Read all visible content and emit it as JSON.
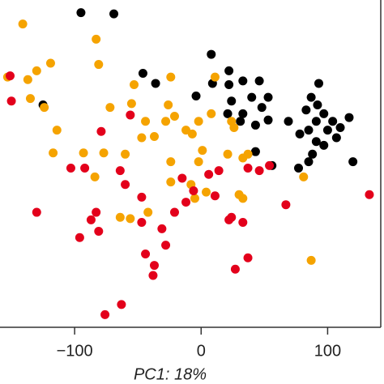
{
  "chart_data": {
    "type": "scatter",
    "x_label": "PC1: 18%",
    "xlim": [
      -159,
      142
    ],
    "xticks": [
      {
        "value": -100,
        "label": "−100"
      },
      0,
      100
    ],
    "ylim": [
      0,
      259
    ],
    "series": [
      {
        "color": "#000000",
        "x": [
          -95,
          -69,
          -46,
          -36,
          -125,
          8,
          22,
          9,
          -4,
          22,
          33,
          46,
          40,
          33,
          24,
          48,
          53,
          43,
          31,
          21,
          53,
          43,
          56,
          93,
          87,
          83,
          92,
          97,
          100,
          91,
          85,
          78,
          91,
          104,
          110,
          117,
          107,
          97,
          88,
          77,
          85,
          120,
          69
        ],
        "y": [
          249,
          248,
          201,
          193,
          176,
          216,
          203,
          193,
          183,
          192,
          195,
          195,
          182,
          169,
          179,
          174,
          182,
          160,
          163,
          169,
          164,
          139,
          128,
          193,
          182,
          172,
          176,
          169,
          156,
          163,
          156,
          153,
          147,
          163,
          158,
          166,
          150,
          144,
          137,
          126,
          131,
          131,
          163
        ]
      },
      {
        "color": "#f5a300",
        "x": [
          -141,
          -83,
          -153,
          -137,
          -130,
          -119,
          -81,
          -53,
          -24,
          -135,
          -124,
          -114,
          -117,
          -93,
          -84,
          -77,
          -60,
          -72,
          -55,
          -26,
          -21,
          -28,
          -47,
          -37,
          -12,
          -2,
          -7,
          8,
          24,
          26,
          1,
          -2,
          21,
          37,
          33,
          -24,
          -24,
          -8,
          4,
          30,
          33,
          -42,
          -56,
          -64,
          -5,
          81,
          87,
          11,
          -44
        ],
        "y": [
          240,
          228,
          198,
          196,
          203,
          209,
          208,
          192,
          198,
          181,
          174,
          156,
          138,
          138,
          119,
          138,
          137,
          174,
          177,
          176,
          167,
          163,
          150,
          151,
          156,
          163,
          153,
          169,
          163,
          158,
          140,
          131,
          137,
          137,
          134,
          131,
          115,
          113,
          107,
          105,
          102,
          91,
          86,
          87,
          102,
          119,
          53,
          198,
          163
        ]
      },
      {
        "color": "#e3001b",
        "x": [
          -151,
          -150,
          -79,
          -56,
          -103,
          -92,
          -64,
          -60,
          -47,
          -83,
          -87,
          -130,
          -81,
          -96,
          -47,
          -31,
          -21,
          -12,
          -6,
          -28,
          -44,
          -37,
          -38,
          -63,
          -76,
          11,
          24,
          22,
          33,
          37,
          27,
          46,
          54,
          67,
          133,
          14,
          37,
          -15,
          6
        ],
        "y": [
          199,
          179,
          155,
          168,
          126,
          126,
          124,
          113,
          103,
          91,
          85,
          91,
          76,
          71,
          83,
          78,
          91,
          99,
          108,
          65,
          58,
          49,
          41,
          18,
          10,
          104,
          87,
          85,
          83,
          55,
          46,
          124,
          128,
          97,
          105,
          124,
          126,
          118,
          121
        ]
      }
    ]
  }
}
